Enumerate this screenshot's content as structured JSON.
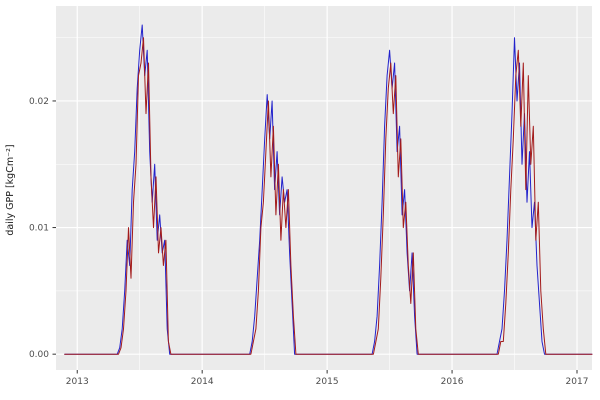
{
  "chart_data": {
    "type": "line",
    "title": "",
    "xlabel": "",
    "ylabel": "daily GPP [kgCm⁻²]",
    "xlim": [
      2012.83,
      2017.12
    ],
    "ylim": [
      -0.00125,
      0.0275
    ],
    "x_ticks": [
      2013,
      2014,
      2015,
      2016,
      2017
    ],
    "x_tick_labels": [
      "2013",
      "2014",
      "2015",
      "2016",
      "2017"
    ],
    "x_minor_ticks": [
      2013.5,
      2014.5,
      2015.5,
      2016.5
    ],
    "y_ticks": [
      0,
      0.01,
      0.02
    ],
    "y_tick_labels": [
      "0.00",
      "0.01",
      "0.02"
    ],
    "y_minor_ticks": [
      0.005,
      0.015,
      0.025
    ],
    "grid": "major-and-minor",
    "legend": "none",
    "background": "#FFFFFF",
    "panel_background": "#EBEBEB",
    "gridline_color": "#FFFFFF",
    "tick_color": "#333333",
    "tick_label_color": "#4D4D4D",
    "series": [
      {
        "name": "series_blue",
        "color": "#2222CC",
        "points": [
          [
            2012.9,
            0
          ],
          [
            2013.1,
            0
          ],
          [
            2013.25,
            0
          ],
          [
            2013.32,
            0
          ],
          [
            2013.34,
            0.0005
          ],
          [
            2013.36,
            0.002
          ],
          [
            2013.38,
            0.005
          ],
          [
            2013.4,
            0.009
          ],
          [
            2013.42,
            0.007
          ],
          [
            2013.44,
            0.013
          ],
          [
            2013.46,
            0.016
          ],
          [
            2013.48,
            0.021
          ],
          [
            2013.5,
            0.024
          ],
          [
            2013.52,
            0.026
          ],
          [
            2013.54,
            0.022
          ],
          [
            2013.56,
            0.024
          ],
          [
            2013.58,
            0.016
          ],
          [
            2013.6,
            0.012
          ],
          [
            2013.62,
            0.015
          ],
          [
            2013.64,
            0.009
          ],
          [
            2013.66,
            0.011
          ],
          [
            2013.68,
            0.008
          ],
          [
            2013.7,
            0.009
          ],
          [
            2013.72,
            0.002
          ],
          [
            2013.74,
            0
          ],
          [
            2013.85,
            0
          ],
          [
            2014.0,
            0
          ],
          [
            2014.2,
            0
          ],
          [
            2014.38,
            0
          ],
          [
            2014.4,
            0.001
          ],
          [
            2014.42,
            0.003
          ],
          [
            2014.44,
            0.006
          ],
          [
            2014.46,
            0.009
          ],
          [
            2014.48,
            0.013
          ],
          [
            2014.5,
            0.017
          ],
          [
            2014.52,
            0.0205
          ],
          [
            2014.54,
            0.017
          ],
          [
            2014.56,
            0.02
          ],
          [
            2014.58,
            0.013
          ],
          [
            2014.6,
            0.016
          ],
          [
            2014.62,
            0.011
          ],
          [
            2014.64,
            0.014
          ],
          [
            2014.66,
            0.012
          ],
          [
            2014.68,
            0.013
          ],
          [
            2014.7,
            0.008
          ],
          [
            2014.72,
            0.004
          ],
          [
            2014.74,
            0
          ],
          [
            2014.85,
            0
          ],
          [
            2015.0,
            0
          ],
          [
            2015.2,
            0
          ],
          [
            2015.36,
            0
          ],
          [
            2015.38,
            0.001
          ],
          [
            2015.4,
            0.003
          ],
          [
            2015.42,
            0.007
          ],
          [
            2015.44,
            0.012
          ],
          [
            2015.46,
            0.018
          ],
          [
            2015.48,
            0.022
          ],
          [
            2015.5,
            0.024
          ],
          [
            2015.52,
            0.021
          ],
          [
            2015.54,
            0.023
          ],
          [
            2015.56,
            0.016
          ],
          [
            2015.58,
            0.018
          ],
          [
            2015.6,
            0.011
          ],
          [
            2015.62,
            0.013
          ],
          [
            2015.64,
            0.008
          ],
          [
            2015.66,
            0.005
          ],
          [
            2015.68,
            0.008
          ],
          [
            2015.7,
            0.003
          ],
          [
            2015.72,
            0
          ],
          [
            2015.85,
            0
          ],
          [
            2016.0,
            0
          ],
          [
            2016.2,
            0
          ],
          [
            2016.36,
            0
          ],
          [
            2016.38,
            0.001
          ],
          [
            2016.4,
            0.002
          ],
          [
            2016.42,
            0.005
          ],
          [
            2016.44,
            0.009
          ],
          [
            2016.46,
            0.014
          ],
          [
            2016.48,
            0.019
          ],
          [
            2016.5,
            0.025
          ],
          [
            2016.52,
            0.02
          ],
          [
            2016.54,
            0.023
          ],
          [
            2016.56,
            0.015
          ],
          [
            2016.58,
            0.019
          ],
          [
            2016.6,
            0.012
          ],
          [
            2016.62,
            0.016
          ],
          [
            2016.64,
            0.01
          ],
          [
            2016.66,
            0.012
          ],
          [
            2016.68,
            0.007
          ],
          [
            2016.7,
            0.004
          ],
          [
            2016.72,
            0.001
          ],
          [
            2016.74,
            0
          ],
          [
            2016.85,
            0
          ],
          [
            2017.0,
            0
          ],
          [
            2017.12,
            0
          ]
        ]
      },
      {
        "name": "series_dark_red",
        "color": "#A31B1B",
        "points": [
          [
            2012.9,
            0
          ],
          [
            2013.1,
            0
          ],
          [
            2013.25,
            0
          ],
          [
            2013.33,
            0
          ],
          [
            2013.35,
            0.0005
          ],
          [
            2013.37,
            0.002
          ],
          [
            2013.39,
            0.005
          ],
          [
            2013.41,
            0.01
          ],
          [
            2013.43,
            0.006
          ],
          [
            2013.45,
            0.012
          ],
          [
            2013.47,
            0.015
          ],
          [
            2013.49,
            0.022
          ],
          [
            2013.51,
            0.023
          ],
          [
            2013.53,
            0.025
          ],
          [
            2013.55,
            0.019
          ],
          [
            2013.57,
            0.023
          ],
          [
            2013.59,
            0.014
          ],
          [
            2013.61,
            0.01
          ],
          [
            2013.63,
            0.014
          ],
          [
            2013.65,
            0.008
          ],
          [
            2013.67,
            0.01
          ],
          [
            2013.69,
            0.007
          ],
          [
            2013.71,
            0.009
          ],
          [
            2013.73,
            0.001
          ],
          [
            2013.75,
            0
          ],
          [
            2013.85,
            0
          ],
          [
            2014.0,
            0
          ],
          [
            2014.2,
            0
          ],
          [
            2014.39,
            0
          ],
          [
            2014.41,
            0.001
          ],
          [
            2014.43,
            0.002
          ],
          [
            2014.45,
            0.005
          ],
          [
            2014.47,
            0.01
          ],
          [
            2014.49,
            0.012
          ],
          [
            2014.51,
            0.016
          ],
          [
            2014.53,
            0.02
          ],
          [
            2014.55,
            0.014
          ],
          [
            2014.57,
            0.018
          ],
          [
            2014.59,
            0.011
          ],
          [
            2014.61,
            0.015
          ],
          [
            2014.63,
            0.009
          ],
          [
            2014.65,
            0.013
          ],
          [
            2014.67,
            0.01
          ],
          [
            2014.69,
            0.013
          ],
          [
            2014.71,
            0.007
          ],
          [
            2014.73,
            0.003
          ],
          [
            2014.75,
            0
          ],
          [
            2014.85,
            0
          ],
          [
            2015.0,
            0
          ],
          [
            2015.2,
            0
          ],
          [
            2015.37,
            0
          ],
          [
            2015.39,
            0.001
          ],
          [
            2015.41,
            0.002
          ],
          [
            2015.43,
            0.006
          ],
          [
            2015.45,
            0.011
          ],
          [
            2015.47,
            0.017
          ],
          [
            2015.49,
            0.021
          ],
          [
            2015.51,
            0.023
          ],
          [
            2015.53,
            0.019
          ],
          [
            2015.55,
            0.022
          ],
          [
            2015.57,
            0.014
          ],
          [
            2015.59,
            0.017
          ],
          [
            2015.61,
            0.01
          ],
          [
            2015.63,
            0.012
          ],
          [
            2015.65,
            0.007
          ],
          [
            2015.67,
            0.004
          ],
          [
            2015.69,
            0.008
          ],
          [
            2015.71,
            0.002
          ],
          [
            2015.73,
            0
          ],
          [
            2015.85,
            0
          ],
          [
            2016.0,
            0
          ],
          [
            2016.2,
            0
          ],
          [
            2016.37,
            0
          ],
          [
            2016.39,
            0.001
          ],
          [
            2016.41,
            0.001
          ],
          [
            2016.43,
            0.004
          ],
          [
            2016.45,
            0.008
          ],
          [
            2016.47,
            0.013
          ],
          [
            2016.49,
            0.017
          ],
          [
            2016.51,
            0.022
          ],
          [
            2016.53,
            0.024
          ],
          [
            2016.55,
            0.018
          ],
          [
            2016.57,
            0.023
          ],
          [
            2016.59,
            0.013
          ],
          [
            2016.61,
            0.022
          ],
          [
            2016.63,
            0.015
          ],
          [
            2016.65,
            0.018
          ],
          [
            2016.67,
            0.009
          ],
          [
            2016.69,
            0.012
          ],
          [
            2016.71,
            0.005
          ],
          [
            2016.73,
            0.002
          ],
          [
            2016.75,
            0
          ],
          [
            2016.85,
            0
          ],
          [
            2017.0,
            0
          ],
          [
            2017.12,
            0
          ]
        ]
      }
    ]
  }
}
